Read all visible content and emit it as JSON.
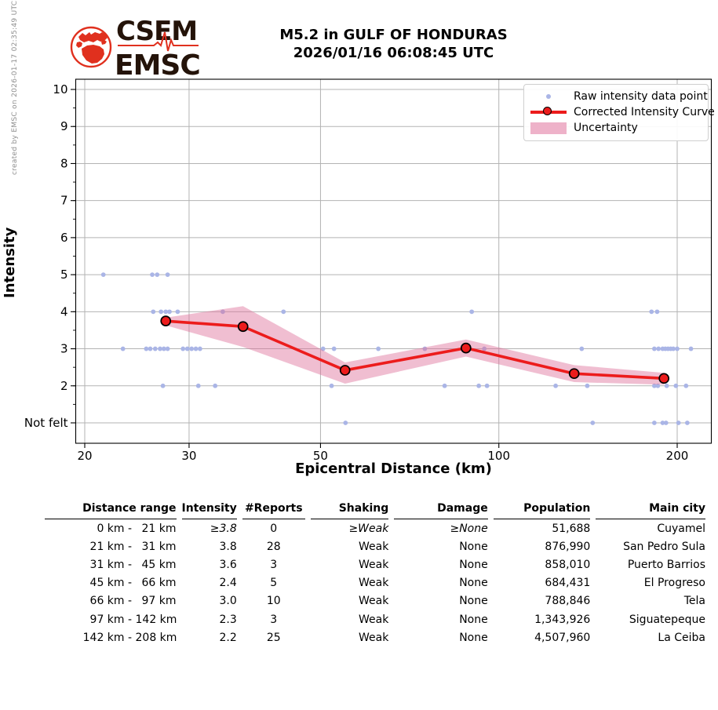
{
  "meta": {
    "credit": "created by EMSC on 2026-01-17 02:35:49 UTC"
  },
  "logo": {
    "org_acronym_fr": "CSEM",
    "org_acronym_en": "EMSC"
  },
  "title": {
    "line1": "M5.2 in GULF OF HONDURAS",
    "line2": "2026/01/16 06:08:45 UTC"
  },
  "chart_data": {
    "type": "scatter",
    "title": "M5.2 in GULF OF HONDURAS 2026/01/16 06:08:45 UTC",
    "xlabel": "Epicentral Distance (km)",
    "ylabel": "Intensity",
    "x_scale": "log",
    "grid": true,
    "legend_position": "upper right",
    "x_ticks": [
      20,
      30,
      50,
      100,
      200
    ],
    "y_ticks": [
      {
        "v": 10,
        "label": "10"
      },
      {
        "v": 9,
        "label": "9"
      },
      {
        "v": 8,
        "label": "8"
      },
      {
        "v": 7,
        "label": "7"
      },
      {
        "v": 6,
        "label": "6"
      },
      {
        "v": 5,
        "label": "5"
      },
      {
        "v": 4,
        "label": "4"
      },
      {
        "v": 3,
        "label": "3"
      },
      {
        "v": 2,
        "label": "2"
      },
      {
        "v": 1,
        "label": "Not felt"
      }
    ],
    "x_range": [
      19.3,
      228
    ],
    "y_range": [
      0.45,
      10.27
    ],
    "legend": [
      {
        "label": "Raw intensity data point",
        "type": "point"
      },
      {
        "label": "Corrected Intensity Curve",
        "type": "line_marker"
      },
      {
        "label": "Uncertainty",
        "type": "band"
      }
    ],
    "series": [
      {
        "name": "Raw intensity data point",
        "type": "scatter",
        "points": [
          [
            21.5,
            5
          ],
          [
            26.0,
            5
          ],
          [
            26.5,
            5
          ],
          [
            27.6,
            5
          ],
          [
            26.1,
            4
          ],
          [
            26.9,
            4
          ],
          [
            27.4,
            4
          ],
          [
            27.8,
            4
          ],
          [
            28.7,
            4
          ],
          [
            34.2,
            4
          ],
          [
            43.3,
            4
          ],
          [
            90,
            4
          ],
          [
            181,
            4
          ],
          [
            185,
            4
          ],
          [
            23.2,
            3
          ],
          [
            25.4,
            3
          ],
          [
            25.8,
            3
          ],
          [
            26.3,
            3
          ],
          [
            26.8,
            3
          ],
          [
            27.2,
            3
          ],
          [
            27.6,
            3
          ],
          [
            29.3,
            3
          ],
          [
            29.8,
            3
          ],
          [
            30.3,
            3
          ],
          [
            30.8,
            3
          ],
          [
            31.3,
            3
          ],
          [
            50.5,
            3
          ],
          [
            52.7,
            3
          ],
          [
            62.6,
            3
          ],
          [
            75,
            3
          ],
          [
            94.5,
            3
          ],
          [
            138,
            3
          ],
          [
            183,
            3
          ],
          [
            186,
            3
          ],
          [
            189,
            3
          ],
          [
            191,
            3
          ],
          [
            193,
            3
          ],
          [
            195,
            3
          ],
          [
            197,
            3
          ],
          [
            200,
            3
          ],
          [
            211,
            3
          ],
          [
            27.1,
            2
          ],
          [
            31.1,
            2
          ],
          [
            33.2,
            2
          ],
          [
            52.2,
            2
          ],
          [
            81,
            2
          ],
          [
            92.5,
            2
          ],
          [
            95.5,
            2
          ],
          [
            124.7,
            2
          ],
          [
            141,
            2
          ],
          [
            183,
            2
          ],
          [
            185.5,
            2
          ],
          [
            192,
            2
          ],
          [
            199,
            2
          ],
          [
            207,
            2
          ],
          [
            55.1,
            1
          ],
          [
            144,
            1
          ],
          [
            183,
            1
          ],
          [
            189,
            1
          ],
          [
            191.5,
            1
          ],
          [
            201,
            1
          ],
          [
            208,
            1
          ]
        ]
      },
      {
        "name": "Corrected Intensity Curve",
        "type": "line",
        "points": [
          [
            27.4,
            3.75
          ],
          [
            37,
            3.6
          ],
          [
            55,
            2.42
          ],
          [
            88,
            3.02
          ],
          [
            134,
            2.33
          ],
          [
            190,
            2.2
          ]
        ]
      },
      {
        "name": "Uncertainty",
        "type": "band",
        "upper": [
          [
            27.4,
            3.84
          ],
          [
            37,
            4.15
          ],
          [
            55,
            2.63
          ],
          [
            88,
            3.25
          ],
          [
            134,
            2.56
          ],
          [
            190,
            2.35
          ]
        ],
        "lower": [
          [
            27.4,
            3.63
          ],
          [
            37,
            3.05
          ],
          [
            55,
            2.06
          ],
          [
            88,
            2.79
          ],
          [
            134,
            2.1
          ],
          [
            190,
            2.03
          ]
        ]
      }
    ]
  },
  "table": {
    "headers": [
      "Distance range",
      "Intensity",
      "#Reports",
      "Shaking",
      "Damage",
      "Population",
      "Main city"
    ],
    "rows": [
      {
        "range_from": "0 km",
        "range_to": "21 km",
        "intensity": "≥3.8",
        "reports": "0",
        "shaking": "≥Weak",
        "damage": "≥None",
        "population": "51,688",
        "city": "Cuyamel",
        "estimated": true
      },
      {
        "range_from": "21 km",
        "range_to": "31 km",
        "intensity": "3.8",
        "reports": "28",
        "shaking": "Weak",
        "damage": "None",
        "population": "876,990",
        "city": "San Pedro Sula",
        "estimated": false
      },
      {
        "range_from": "31 km",
        "range_to": "45 km",
        "intensity": "3.6",
        "reports": "3",
        "shaking": "Weak",
        "damage": "None",
        "population": "858,010",
        "city": "Puerto Barrios",
        "estimated": false
      },
      {
        "range_from": "45 km",
        "range_to": "66 km",
        "intensity": "2.4",
        "reports": "5",
        "shaking": "Weak",
        "damage": "None",
        "population": "684,431",
        "city": "El Progreso",
        "estimated": false
      },
      {
        "range_from": "66 km",
        "range_to": "97 km",
        "intensity": "3.0",
        "reports": "10",
        "shaking": "Weak",
        "damage": "None",
        "population": "788,846",
        "city": "Tela",
        "estimated": false
      },
      {
        "range_from": "97 km",
        "range_to": "142 km",
        "intensity": "2.3",
        "reports": "3",
        "shaking": "Weak",
        "damage": "None",
        "population": "1,343,926",
        "city": "Siguatepeque",
        "estimated": false
      },
      {
        "range_from": "142 km",
        "range_to": "208 km",
        "intensity": "2.2",
        "reports": "25",
        "shaking": "Weak",
        "damage": "None",
        "population": "4,507,960",
        "city": "La Ceiba",
        "estimated": false
      }
    ]
  },
  "colors": {
    "raw_point": "#aab5e6",
    "curve_red": "#ec1c1c",
    "band_pink": "#de6f98",
    "grid": "#b3b3b3",
    "spine": "#000000",
    "logo_red": "#e0301e",
    "logo_text": "#241309",
    "credit_gray": "#8f8f8f"
  }
}
